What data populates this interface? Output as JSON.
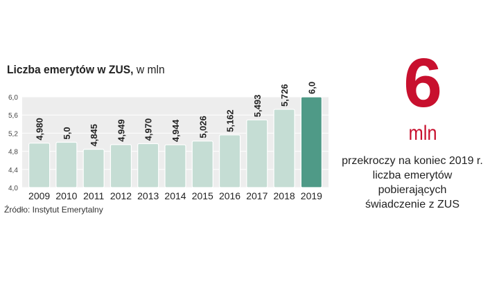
{
  "chart_data": {
    "type": "bar",
    "title_bold": "Liczba emerytów w ZUS,",
    "title_rest": " w mln",
    "categories": [
      "2009",
      "2010",
      "2011",
      "2012",
      "2013",
      "2014",
      "2015",
      "2016",
      "2017",
      "2018",
      "2019"
    ],
    "values": [
      4.98,
      5.0,
      4.845,
      4.949,
      4.97,
      4.944,
      5.026,
      5.162,
      5.493,
      5.726,
      6.0
    ],
    "value_labels": [
      "4,980",
      "5,0",
      "4,845",
      "4,949",
      "4,970",
      "4,944",
      "5,026",
      "5,162",
      "5,493",
      "5,726",
      "6,0"
    ],
    "ylim": [
      4.0,
      6.0
    ],
    "yticks": [
      4.0,
      4.4,
      4.8,
      5.2,
      5.6,
      6.0
    ],
    "ytick_labels": [
      "4,0",
      "4,4",
      "4,8",
      "5,2",
      "5,6",
      "6,0"
    ],
    "grid": true,
    "colors": {
      "bar": "#c5ddd4",
      "highlight": "#4f9a87",
      "background": "#ededed",
      "grid": "#ffffff"
    },
    "highlight_index": 10
  },
  "source": "Źródło: Instytut Emerytalny",
  "callout": {
    "number": "6",
    "unit": "mln",
    "lines": [
      "przekroczy na koniec 2019 r.",
      "liczba emerytów",
      "pobierających",
      "świadczenie z ZUS"
    ],
    "color": "#c8102e"
  }
}
